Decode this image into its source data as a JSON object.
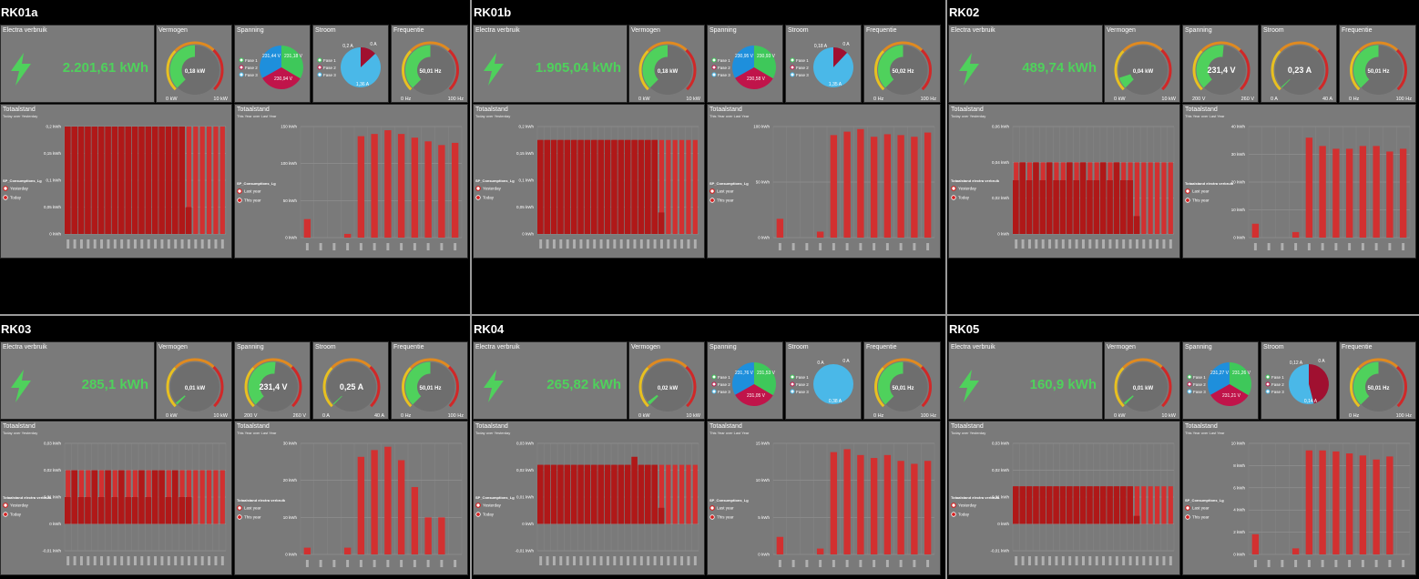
{
  "labels": {
    "electra": "Electra verbruik",
    "vermogen": "Vermogen",
    "spanning": "Spanning",
    "stroom": "Stroom",
    "frequentie": "Frequentie",
    "totaalstand": "Totaalstand",
    "today_sub": "Today over Yesterday",
    "year_sub": "This Year over Last Year",
    "yesterday": "Yesterday",
    "today": "Today",
    "last_year": "Last year",
    "this_year": "This year",
    "fase1": "Fase 1",
    "fase2": "Fase 2",
    "fase3": "Fase 3",
    "kw0": "0 kW",
    "kw10": "10 kW",
    "v200": "200 V",
    "v260": "260 V",
    "a0": "0 A",
    "a40": "40 A",
    "hz0": "0 Hz",
    "hz100": "100 Hz"
  },
  "colors": {
    "green": "#4fd15c",
    "red": "#d42020",
    "bar_dark": "#b01818",
    "bar_light": "#d23030",
    "tile": "#7a7a7a",
    "pie_blue": "#1e8fdc",
    "pie_green": "#3ec85a",
    "pie_red": "#c0144a",
    "pie_light_blue": "#4ab8e8",
    "pie_crimson": "#a01030"
  },
  "panels": [
    {
      "id": "RK01a",
      "kwh": "2.201,61 kWh",
      "power": "0,18 kW",
      "power_frac": 0.5,
      "voltage_type": "pie",
      "voltage_vals": [
        "231,44 V",
        "231,18 V",
        "230,94 V"
      ],
      "current_type": "pie",
      "current_vals": [
        "0,2 A",
        "0 A",
        "1,36 A"
      ],
      "current_fracs": [
        0.13,
        0.0,
        0.87
      ],
      "frequency": "50,01 Hz",
      "freq_frac": 0.5,
      "day_legend_title": "SP_Consumptions_Lg",
      "day_yticks": [
        "0,2 kWh",
        "0,15 kWh",
        "0,1 kWh",
        "0,05 kWh",
        "0 kWh"
      ],
      "day_ymax": 0.2,
      "day_yesterday": [
        0.2,
        0.2,
        0.2,
        0.2,
        0.2,
        0.2,
        0.2,
        0.2,
        0.2,
        0.2,
        0.2,
        0.2,
        0.2,
        0.2,
        0.2,
        0.2,
        0.2,
        0.2,
        0.2,
        0.2,
        0.2,
        0.2,
        0.2,
        0.2
      ],
      "day_today": [
        0.2,
        0.2,
        0.2,
        0.2,
        0.2,
        0.2,
        0.2,
        0.2,
        0.2,
        0.2,
        0.2,
        0.2,
        0.2,
        0.2,
        0.2,
        0.2,
        0.2,
        0.2,
        0.05
      ],
      "year_legend_title": "SP_Consumptions_Lg",
      "year_yticks": [
        "150 kWh",
        "100 kWh",
        "50 kWh",
        "0 kWh"
      ],
      "year_ymax": 150,
      "year_last": [
        25,
        0,
        0,
        0,
        0,
        0,
        0,
        0,
        0,
        0,
        0,
        0
      ],
      "year_this": [
        0,
        0,
        0,
        5,
        137,
        140,
        145,
        140,
        135,
        130,
        125,
        128
      ]
    },
    {
      "id": "RK01b",
      "kwh": "1.905,04 kWh",
      "power": "0,18 kW",
      "power_frac": 0.5,
      "voltage_type": "pie",
      "voltage_vals": [
        "230,95 V",
        "230,93 V",
        "230,58 V"
      ],
      "current_type": "pie",
      "current_vals": [
        "0,18 A",
        "0 A",
        "1,35 A"
      ],
      "current_fracs": [
        0.12,
        0.0,
        0.88
      ],
      "frequency": "50,02 Hz",
      "freq_frac": 0.5,
      "day_legend_title": "SP_Consumptions_Lg",
      "day_yticks": [
        "0,2 kWh",
        "0,15 kWh",
        "0,1 kWh",
        "0,05 kWh",
        "0 kWh"
      ],
      "day_ymax": 0.2,
      "day_yesterday": [
        0.175,
        0.175,
        0.175,
        0.175,
        0.175,
        0.175,
        0.175,
        0.175,
        0.175,
        0.175,
        0.175,
        0.175,
        0.175,
        0.175,
        0.175,
        0.175,
        0.175,
        0.175,
        0.175,
        0.175,
        0.175,
        0.175,
        0.175,
        0.175
      ],
      "day_today": [
        0.175,
        0.175,
        0.175,
        0.175,
        0.175,
        0.175,
        0.175,
        0.175,
        0.175,
        0.175,
        0.175,
        0.175,
        0.175,
        0.175,
        0.175,
        0.175,
        0.175,
        0.175,
        0.04
      ],
      "year_legend_title": "SP_Consumptions_Lg",
      "year_yticks": [
        "100 kWh",
        "50 kWh",
        "0 kWh"
      ],
      "year_ymax": 130,
      "year_last": [
        22,
        0,
        0,
        0,
        0,
        0,
        0,
        0,
        0,
        0,
        0,
        0
      ],
      "year_this": [
        0,
        0,
        0,
        7,
        120,
        124,
        127,
        118,
        121,
        120,
        118,
        123
      ]
    },
    {
      "id": "RK02",
      "kwh": "489,74 kWh",
      "power": "0,04 kW",
      "power_frac": 0.1,
      "voltage_type": "gauge",
      "voltage_vals": [
        "231,4 V"
      ],
      "voltage_frac": 0.52,
      "current_type": "gauge",
      "current_vals": [
        "0,23 A"
      ],
      "current_frac": 0.01,
      "frequency": "50,01 Hz",
      "freq_frac": 0.5,
      "day_legend_title": "Totaalstand electra verbruik",
      "day_yticks": [
        "0,06 kWh",
        "0,04 kWh",
        "0,02 kWh",
        "0 kWh"
      ],
      "day_ymax": 0.06,
      "day_yesterday": [
        0.04,
        0.04,
        0.04,
        0.04,
        0.04,
        0.04,
        0.04,
        0.04,
        0.04,
        0.04,
        0.04,
        0.04,
        0.04,
        0.04,
        0.04,
        0.04,
        0.04,
        0.04,
        0.04,
        0.04,
        0.04,
        0.04,
        0.04,
        0.04
      ],
      "day_today": [
        0.03,
        0.04,
        0.03,
        0.04,
        0.03,
        0.04,
        0.03,
        0.03,
        0.04,
        0.03,
        0.04,
        0.03,
        0.03,
        0.04,
        0.03,
        0.04,
        0.03,
        0.03,
        0.01
      ],
      "year_legend_title": "Totaalstand electra verbruik",
      "year_yticks": [
        "40 kWh",
        "30 kWh",
        "20 kWh",
        "10 kWh",
        "0 kWh"
      ],
      "year_ymax": 40,
      "year_last": [
        5,
        0,
        0,
        0,
        0,
        0,
        0,
        0,
        0,
        0,
        0,
        0
      ],
      "year_this": [
        0,
        0,
        0,
        2,
        36,
        33,
        32,
        32,
        33,
        33,
        31,
        32
      ]
    },
    {
      "id": "RK03",
      "kwh": "285,1 kWh",
      "power": "0,01 kW",
      "power_frac": 0.02,
      "voltage_type": "gauge",
      "voltage_vals": [
        "231,4 V"
      ],
      "voltage_frac": 0.52,
      "current_type": "gauge",
      "current_vals": [
        "0,25 A"
      ],
      "current_frac": 0.01,
      "frequency": "50,01 Hz",
      "freq_frac": 0.5,
      "day_legend_title": "Totaalstand electra verbruik",
      "day_yticks": [
        "0,03 kWh",
        "0,02 kWh",
        "0,01 kWh",
        "0 kWh",
        "-0,01 kWh"
      ],
      "day_ymax": 0.03,
      "day_ymin": -0.01,
      "day_yesterday": [
        0.02,
        0.02,
        0.02,
        0.02,
        0.02,
        0.02,
        0.02,
        0.02,
        0.02,
        0.02,
        0.02,
        0.02,
        0.02,
        0.02,
        0.02,
        0.02,
        0.02,
        0.02,
        0.02,
        0.02,
        0.02,
        0.02,
        0.02,
        0.02
      ],
      "day_today": [
        0.01,
        0.02,
        0.01,
        0.01,
        0.02,
        0.01,
        0.02,
        0.01,
        0.02,
        0.01,
        0.01,
        0.02,
        0.01,
        0.02,
        0.02,
        0.01,
        0.02,
        0.01,
        0.01
      ],
      "year_legend_title": "Totaalstand electra verbruik",
      "year_yticks": [
        "30 kWh",
        "20 kWh",
        "10 kWh",
        "0 kWh"
      ],
      "year_ymax": 33,
      "year_last": [
        2,
        0,
        0,
        0,
        0,
        0,
        0,
        0,
        0,
        0,
        0,
        0
      ],
      "year_this": [
        0,
        0,
        0,
        2,
        29,
        31,
        32,
        28,
        20,
        11,
        11,
        0
      ]
    },
    {
      "id": "RK04",
      "kwh": "265,82 kWh",
      "power": "0,02 kW",
      "power_frac": 0.03,
      "voltage_type": "pie",
      "voltage_vals": [
        "231,76 V",
        "231,53 V",
        "231,05 V"
      ],
      "current_type": "pie",
      "current_vals": [
        "0 A",
        "0 A",
        "0,38 A"
      ],
      "current_fracs": [
        0.0,
        0.0,
        1.0
      ],
      "frequency": "50,01 Hz",
      "freq_frac": 0.5,
      "day_legend_title": "SP_Consumptions_Lg",
      "day_yticks": [
        "0,03 kWh",
        "0,02 kWh",
        "0,01 kWh",
        "0 kWh",
        "-0,01 kWh"
      ],
      "day_ymax": 0.03,
      "day_ymin": -0.01,
      "day_yesterday": [
        0.022,
        0.022,
        0.022,
        0.022,
        0.022,
        0.022,
        0.022,
        0.022,
        0.022,
        0.022,
        0.022,
        0.022,
        0.022,
        0.022,
        0.022,
        0.022,
        0.022,
        0.022,
        0.022,
        0.022,
        0.022,
        0.022,
        0.022,
        0.022
      ],
      "day_today": [
        0.022,
        0.022,
        0.022,
        0.022,
        0.022,
        0.022,
        0.022,
        0.022,
        0.022,
        0.022,
        0.022,
        0.022,
        0.022,
        0.022,
        0.025,
        0.022,
        0.022,
        0.022,
        0.006
      ],
      "year_legend_title": "SP_Consumptions_Lg",
      "year_yticks": [
        "15 kWh",
        "10 kWh",
        "5 kWh",
        "0 kWh"
      ],
      "year_ymax": 19,
      "year_last": [
        3,
        0,
        0,
        0,
        0,
        0,
        0,
        0,
        0,
        0,
        0,
        0
      ],
      "year_this": [
        0,
        0,
        0,
        1,
        17.5,
        18,
        17,
        16.5,
        17,
        16,
        15.5,
        16
      ]
    },
    {
      "id": "RK05",
      "kwh": "160,9 kWh",
      "power": "0,01 kW",
      "power_frac": 0.02,
      "voltage_type": "pie",
      "voltage_vals": [
        "231,27 V",
        "231,26 V",
        "231,21 V"
      ],
      "current_type": "pie",
      "current_vals": [
        "0,12 A",
        "0 A",
        "0,14 A"
      ],
      "current_fracs": [
        0.46,
        0.0,
        0.54
      ],
      "frequency": "50,01 Hz",
      "freq_frac": 0.5,
      "day_legend_title": "Totaalstand electra verbruik",
      "day_yticks": [
        "0,03 kWh",
        "0,02 kWh",
        "0,01 kWh",
        "0 kWh",
        "-0,01 kWh"
      ],
      "day_ymax": 0.03,
      "day_ymin": -0.01,
      "day_yesterday": [
        0.014,
        0.014,
        0.014,
        0.014,
        0.014,
        0.014,
        0.014,
        0.014,
        0.014,
        0.014,
        0.014,
        0.014,
        0.014,
        0.014,
        0.014,
        0.014,
        0.014,
        0.014,
        0.014,
        0.014,
        0.014,
        0.014,
        0.014,
        0.014
      ],
      "day_today": [
        0.014,
        0.014,
        0.014,
        0.014,
        0.014,
        0.014,
        0.014,
        0.014,
        0.014,
        0.014,
        0.014,
        0.014,
        0.014,
        0.014,
        0.014,
        0.014,
        0.014,
        0.014,
        0.003
      ],
      "year_legend_title": "SP_Consumptions_Lg",
      "year_yticks": [
        "10 kWh",
        "8 kWh",
        "6 kWh",
        "4 kWh",
        "2 kWh",
        "0 kWh"
      ],
      "year_ymax": 11,
      "year_last": [
        2,
        0,
        0,
        0,
        0,
        0,
        0,
        0,
        0,
        0,
        0,
        0
      ],
      "year_this": [
        0,
        0,
        0,
        0.6,
        10.3,
        10.3,
        10.2,
        10,
        9.8,
        9.4,
        9.7,
        0
      ]
    }
  ]
}
